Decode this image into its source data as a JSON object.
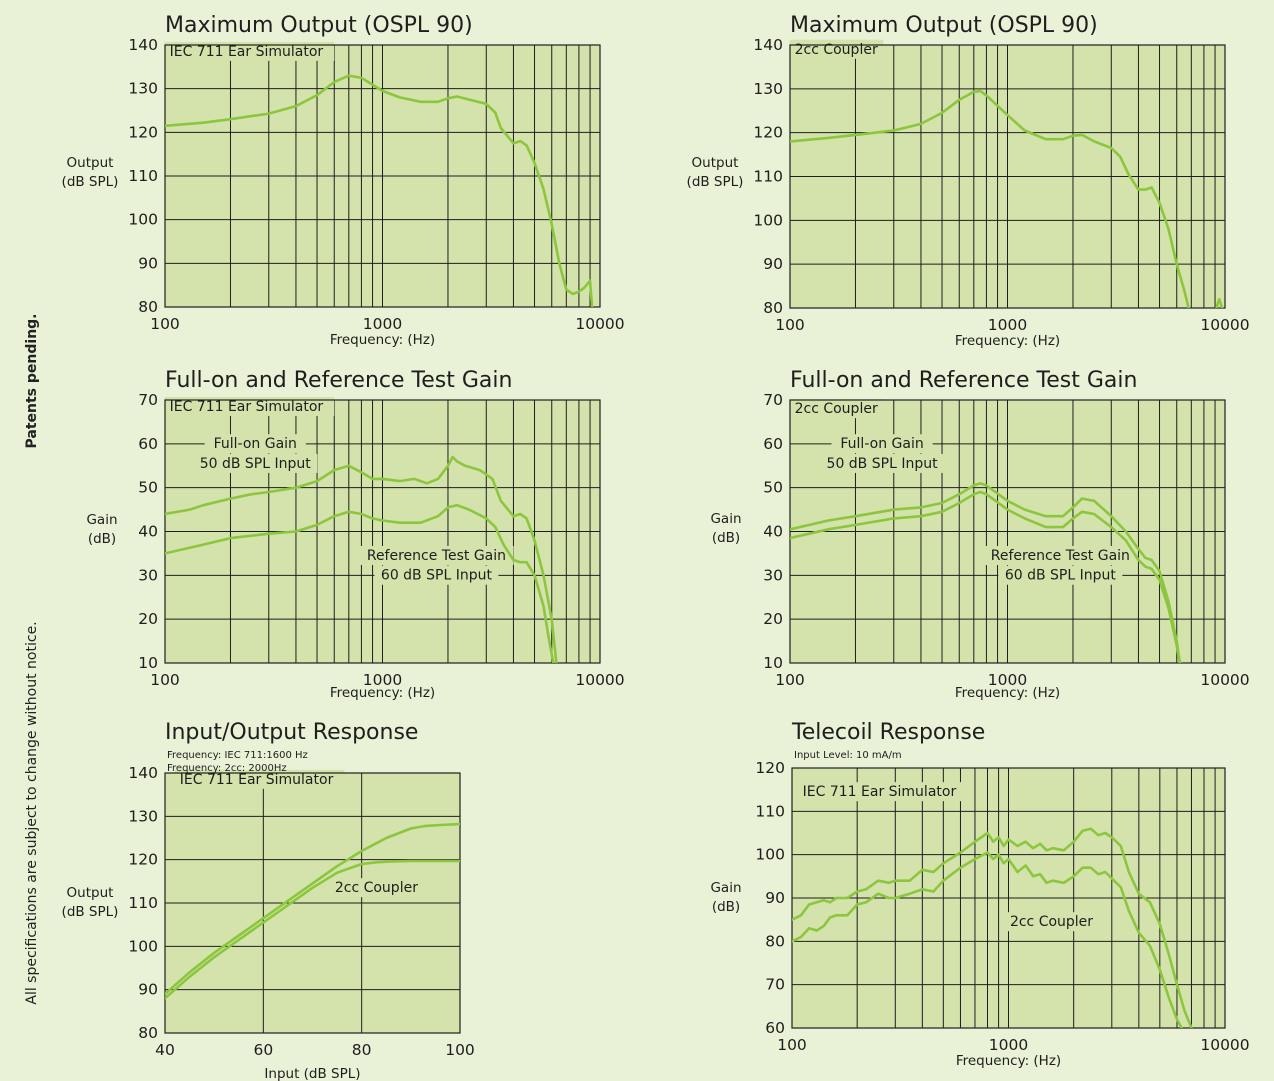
{
  "side_notes": {
    "patents": "Patents pending.",
    "disclaimer": "All specifications are subject to change without notice."
  },
  "colors": {
    "page_background": "#e9f1d6",
    "plot_background": "#d3e3ab",
    "grid": "#1e1e1e",
    "curve": "#8cc63e"
  },
  "chart_data": [
    {
      "id": "mpo-iec",
      "type": "line",
      "title": "Maximum Output (OSPL 90)",
      "subtitle": "",
      "xlabel": "Frequency: (Hz)",
      "ylabel": [
        "Output",
        "(dB SPL)"
      ],
      "xscale": "log",
      "xlim": [
        100,
        10000
      ],
      "ylim": [
        80,
        140
      ],
      "xticks": [
        100,
        1000,
        10000
      ],
      "yticks": [
        80,
        90,
        100,
        110,
        120,
        130,
        140
      ],
      "grid": true,
      "annotations": [
        {
          "text": "IEC 711 Ear Simulator",
          "x": 105,
          "y": 137.5,
          "align": "left"
        }
      ],
      "series": [
        {
          "x": [
            100,
            150,
            200,
            300,
            400,
            500,
            600,
            700,
            800,
            1000,
            1200,
            1500,
            1800,
            2000,
            2200,
            2500,
            3000,
            3300,
            3500,
            4000,
            4300,
            4600,
            5000,
            5500,
            6000,
            6500,
            7000,
            7500,
            8000,
            8500,
            9000,
            9200
          ],
          "y": [
            121.5,
            122.2,
            123,
            124.3,
            126,
            128.5,
            131.5,
            133,
            132.5,
            129.5,
            128,
            127,
            127,
            127.8,
            128.2,
            127.5,
            126.5,
            124.5,
            121,
            117.5,
            118,
            117,
            113,
            107,
            99,
            90,
            84,
            83,
            83.5,
            84.5,
            86,
            80
          ]
        }
      ]
    },
    {
      "id": "mpo-2cc",
      "type": "line",
      "title": "Maximum Output (OSPL 90)",
      "subtitle": "",
      "xlabel": "Frequency: (Hz)",
      "ylabel": [
        "Output",
        "(dB SPL)"
      ],
      "xscale": "log",
      "xlim": [
        100,
        10000
      ],
      "ylim": [
        80,
        140
      ],
      "xticks": [
        100,
        1000,
        10000
      ],
      "yticks": [
        80,
        90,
        100,
        110,
        120,
        130,
        140
      ],
      "grid": true,
      "annotations": [
        {
          "text": "2cc Coupler",
          "x": 105,
          "y": 138,
          "align": "left"
        }
      ],
      "series": [
        {
          "x": [
            100,
            150,
            200,
            300,
            400,
            500,
            600,
            700,
            750,
            800,
            1000,
            1200,
            1500,
            1800,
            2000,
            2200,
            2500,
            3000,
            3300,
            3600,
            4000,
            4300,
            4600,
            5000,
            5500,
            6000,
            6500,
            6800,
            8000,
            8500,
            9000,
            9400,
            9700
          ],
          "y": [
            118,
            118.8,
            119.5,
            120.5,
            122,
            124.5,
            127.5,
            129.3,
            129.5,
            128.5,
            124,
            120.5,
            118.5,
            118.5,
            119.3,
            119.5,
            118,
            116.5,
            114.5,
            110.5,
            107,
            107,
            107.5,
            104,
            98,
            90,
            84,
            80,
            76,
            76,
            79,
            82,
            80
          ]
        }
      ]
    },
    {
      "id": "gain-iec",
      "type": "line",
      "title": "Full-on and Reference Test Gain",
      "subtitle": "",
      "xlabel": "Frequency: (Hz)",
      "ylabel": [
        "Gain",
        "(dB)"
      ],
      "xscale": "log",
      "xlim": [
        100,
        10000
      ],
      "ylim": [
        10,
        70
      ],
      "xticks": [
        100,
        1000,
        10000
      ],
      "yticks": [
        10,
        20,
        30,
        40,
        50,
        60,
        70
      ],
      "grid": true,
      "annotations": [
        {
          "text": "IEC 711 Ear Simulator",
          "x": 105,
          "y": 67.5,
          "align": "left"
        },
        {
          "text": "Full-on Gain",
          "x": 260,
          "y": 59,
          "align": "center"
        },
        {
          "text": "50 dB SPL Input",
          "x": 260,
          "y": 54.5,
          "align": "center"
        },
        {
          "text": "Reference Test Gain",
          "x": 1770,
          "y": 33.5,
          "align": "center"
        },
        {
          "text": "60 dB SPL Input",
          "x": 1770,
          "y": 29,
          "align": "center"
        }
      ],
      "series": [
        {
          "name": "Full-on Gain",
          "x": [
            100,
            130,
            150,
            200,
            250,
            300,
            400,
            500,
            600,
            700,
            800,
            900,
            1000,
            1200,
            1400,
            1600,
            1800,
            2000,
            2100,
            2200,
            2400,
            2800,
            3000,
            3200,
            3500,
            4000,
            4300,
            4600,
            5000,
            5500,
            6000,
            6300
          ],
          "y": [
            44,
            45,
            46,
            47.5,
            48.5,
            49,
            50,
            51.5,
            54,
            55,
            53.5,
            52,
            52,
            51.5,
            52,
            51,
            52,
            55,
            57,
            56,
            55,
            54,
            53,
            52,
            47,
            43.5,
            44,
            43,
            38,
            30,
            20,
            10
          ]
        },
        {
          "name": "Reference Test Gain",
          "x": [
            100,
            150,
            200,
            300,
            400,
            500,
            600,
            700,
            800,
            900,
            1000,
            1200,
            1500,
            1800,
            2000,
            2200,
            2500,
            3000,
            3300,
            3600,
            4000,
            4300,
            4600,
            5000,
            5500,
            5800,
            6000,
            6100
          ],
          "y": [
            35,
            37,
            38.5,
            39.5,
            40,
            41.5,
            43.5,
            44.5,
            44,
            43,
            42.5,
            42,
            42,
            43.5,
            45.5,
            46,
            45,
            43,
            41,
            37,
            33.5,
            33,
            33,
            30,
            23,
            16,
            12,
            10
          ]
        }
      ]
    },
    {
      "id": "gain-2cc",
      "type": "line",
      "title": "Full-on and Reference Test Gain",
      "subtitle": "",
      "xlabel": "Frequency: (Hz)",
      "ylabel": [
        "Gain",
        "(dB)"
      ],
      "xscale": "log",
      "xlim": [
        100,
        10000
      ],
      "ylim": [
        10,
        70
      ],
      "xticks": [
        100,
        1000,
        10000
      ],
      "yticks": [
        10,
        20,
        30,
        40,
        50,
        60,
        70
      ],
      "grid": true,
      "annotations": [
        {
          "text": "2cc Coupler",
          "x": 105,
          "y": 67,
          "align": "left"
        },
        {
          "text": "Full-on Gain",
          "x": 265,
          "y": 59,
          "align": "center"
        },
        {
          "text": "50 dB SPL Input",
          "x": 265,
          "y": 54.5,
          "align": "center"
        },
        {
          "text": "Reference Test Gain",
          "x": 1750,
          "y": 33.5,
          "align": "center"
        },
        {
          "text": "60 dB SPL Input",
          "x": 1750,
          "y": 29,
          "align": "center"
        }
      ],
      "series": [
        {
          "name": "Full-on Gain",
          "x": [
            100,
            150,
            200,
            300,
            400,
            500,
            600,
            700,
            750,
            800,
            1000,
            1200,
            1500,
            1800,
            2000,
            2200,
            2500,
            3000,
            3500,
            4000,
            4300,
            4600,
            5000,
            5500,
            6000,
            6200
          ],
          "y": [
            40.5,
            42.5,
            43.5,
            45,
            45.5,
            46.5,
            48.5,
            50.5,
            51,
            50.5,
            47,
            45,
            43.5,
            43.5,
            45.5,
            47.5,
            47,
            43.5,
            40,
            36,
            34,
            33.5,
            31,
            24,
            15,
            10
          ]
        },
        {
          "name": "Reference Test Gain",
          "x": [
            100,
            150,
            200,
            300,
            400,
            500,
            600,
            700,
            750,
            800,
            1000,
            1200,
            1500,
            1800,
            2000,
            2200,
            2500,
            3000,
            3500,
            4000,
            4300,
            4600,
            5000,
            5500,
            6000,
            6200
          ],
          "y": [
            38.5,
            40.5,
            41.5,
            43,
            43.5,
            44.5,
            46.5,
            48.5,
            49,
            48.5,
            45,
            43,
            41,
            41,
            43,
            44.5,
            44,
            41,
            38,
            33.5,
            32,
            31.5,
            29,
            22.5,
            14,
            10
          ]
        }
      ]
    },
    {
      "id": "io",
      "type": "line",
      "title": "Input/Output Response",
      "subtitle": [
        "Frequency: IEC 711:1600 Hz",
        "Frequency: 2cc: 2000Hz"
      ],
      "xlabel": "Input (dB SPL)",
      "ylabel": [
        "Output",
        "(dB SPL)"
      ],
      "xscale": "linear",
      "xlim": [
        40,
        100
      ],
      "ylim": [
        80,
        140
      ],
      "xticks": [
        40,
        60,
        80,
        100
      ],
      "yticks": [
        80,
        90,
        100,
        110,
        120,
        130,
        140
      ],
      "grid": true,
      "annotations": [
        {
          "text": "IEC 711 Ear Simulator",
          "x": 43,
          "y": 137.5,
          "align": "left"
        },
        {
          "text": "2cc Coupler",
          "x": 83,
          "y": 112.5,
          "align": "center"
        }
      ],
      "series": [
        {
          "name": "IEC 711 Ear Simulator",
          "x": [
            40,
            45,
            50,
            55,
            60,
            65,
            70,
            75,
            80,
            85,
            90,
            93,
            96,
            100
          ],
          "y": [
            89,
            94,
            98.5,
            102.5,
            106.5,
            110.5,
            114.5,
            118.5,
            122,
            125,
            127.2,
            127.8,
            128,
            128.2
          ]
        },
        {
          "name": "2cc Coupler",
          "x": [
            40,
            45,
            50,
            55,
            60,
            65,
            70,
            75,
            80,
            83,
            86,
            90,
            95,
            100
          ],
          "y": [
            88,
            93,
            97.5,
            101.5,
            105.5,
            109.5,
            113.5,
            117,
            119,
            119.4,
            119.6,
            119.7,
            119.7,
            119.7
          ]
        }
      ]
    },
    {
      "id": "telecoil",
      "type": "line",
      "title": "Telecoil Response",
      "subtitle": [
        "Input Level: 10 mA/m"
      ],
      "xlabel": "Frequency: (Hz)",
      "ylabel": [
        "Gain",
        "(dB)"
      ],
      "xscale": "log",
      "xlim": [
        100,
        10000
      ],
      "ylim": [
        60,
        120
      ],
      "xticks": [
        100,
        1000,
        10000
      ],
      "yticks": [
        60,
        70,
        80,
        90,
        100,
        110,
        120
      ],
      "grid": true,
      "annotations": [
        {
          "text": "IEC 711 Ear Simulator",
          "x": 112,
          "y": 113.5,
          "align": "left"
        },
        {
          "text": "2cc Coupler",
          "x": 1580,
          "y": 83.5,
          "align": "center"
        }
      ],
      "series": [
        {
          "name": "IEC 711 Ear Simulator",
          "x": [
            100,
            110,
            120,
            130,
            140,
            150,
            160,
            180,
            200,
            220,
            250,
            280,
            300,
            350,
            400,
            450,
            500,
            600,
            700,
            800,
            850,
            900,
            950,
            1000,
            1100,
            1200,
            1300,
            1400,
            1500,
            1600,
            1800,
            2000,
            2200,
            2400,
            2600,
            2800,
            3000,
            3300,
            3600,
            4000,
            4500,
            5000,
            5500,
            6000,
            6500,
            7000
          ],
          "y": [
            85,
            86,
            88.5,
            89,
            89.5,
            89,
            90,
            90,
            91.5,
            92,
            94,
            93.5,
            94,
            94,
            96.5,
            96,
            98,
            100.5,
            103,
            105,
            103,
            104,
            102,
            103.5,
            102,
            103,
            101.5,
            102.5,
            101,
            101.5,
            101,
            103,
            105.5,
            106,
            104.5,
            105,
            104,
            102,
            96,
            91,
            89,
            84,
            77,
            70,
            64,
            60
          ]
        },
        {
          "name": "2cc Coupler",
          "x": [
            100,
            110,
            120,
            130,
            140,
            150,
            160,
            180,
            200,
            220,
            250,
            280,
            300,
            350,
            400,
            450,
            500,
            600,
            700,
            800,
            850,
            900,
            950,
            1000,
            1100,
            1200,
            1300,
            1400,
            1500,
            1600,
            1800,
            2000,
            2200,
            2400,
            2600,
            2800,
            3000,
            3300,
            3600,
            4000,
            4500,
            5000,
            5500,
            6000,
            6300
          ],
          "y": [
            80,
            81,
            83,
            82.5,
            83.5,
            85.5,
            86,
            86,
            88.5,
            89,
            91,
            90,
            90,
            91,
            92,
            91.5,
            94,
            97,
            99,
            100.5,
            99,
            100,
            98,
            99,
            96,
            97.5,
            95,
            95.5,
            93.5,
            94,
            93.5,
            95,
            97,
            97,
            95.5,
            96,
            94.5,
            92.5,
            87,
            82,
            79,
            73.5,
            67,
            62,
            60
          ]
        }
      ]
    }
  ]
}
